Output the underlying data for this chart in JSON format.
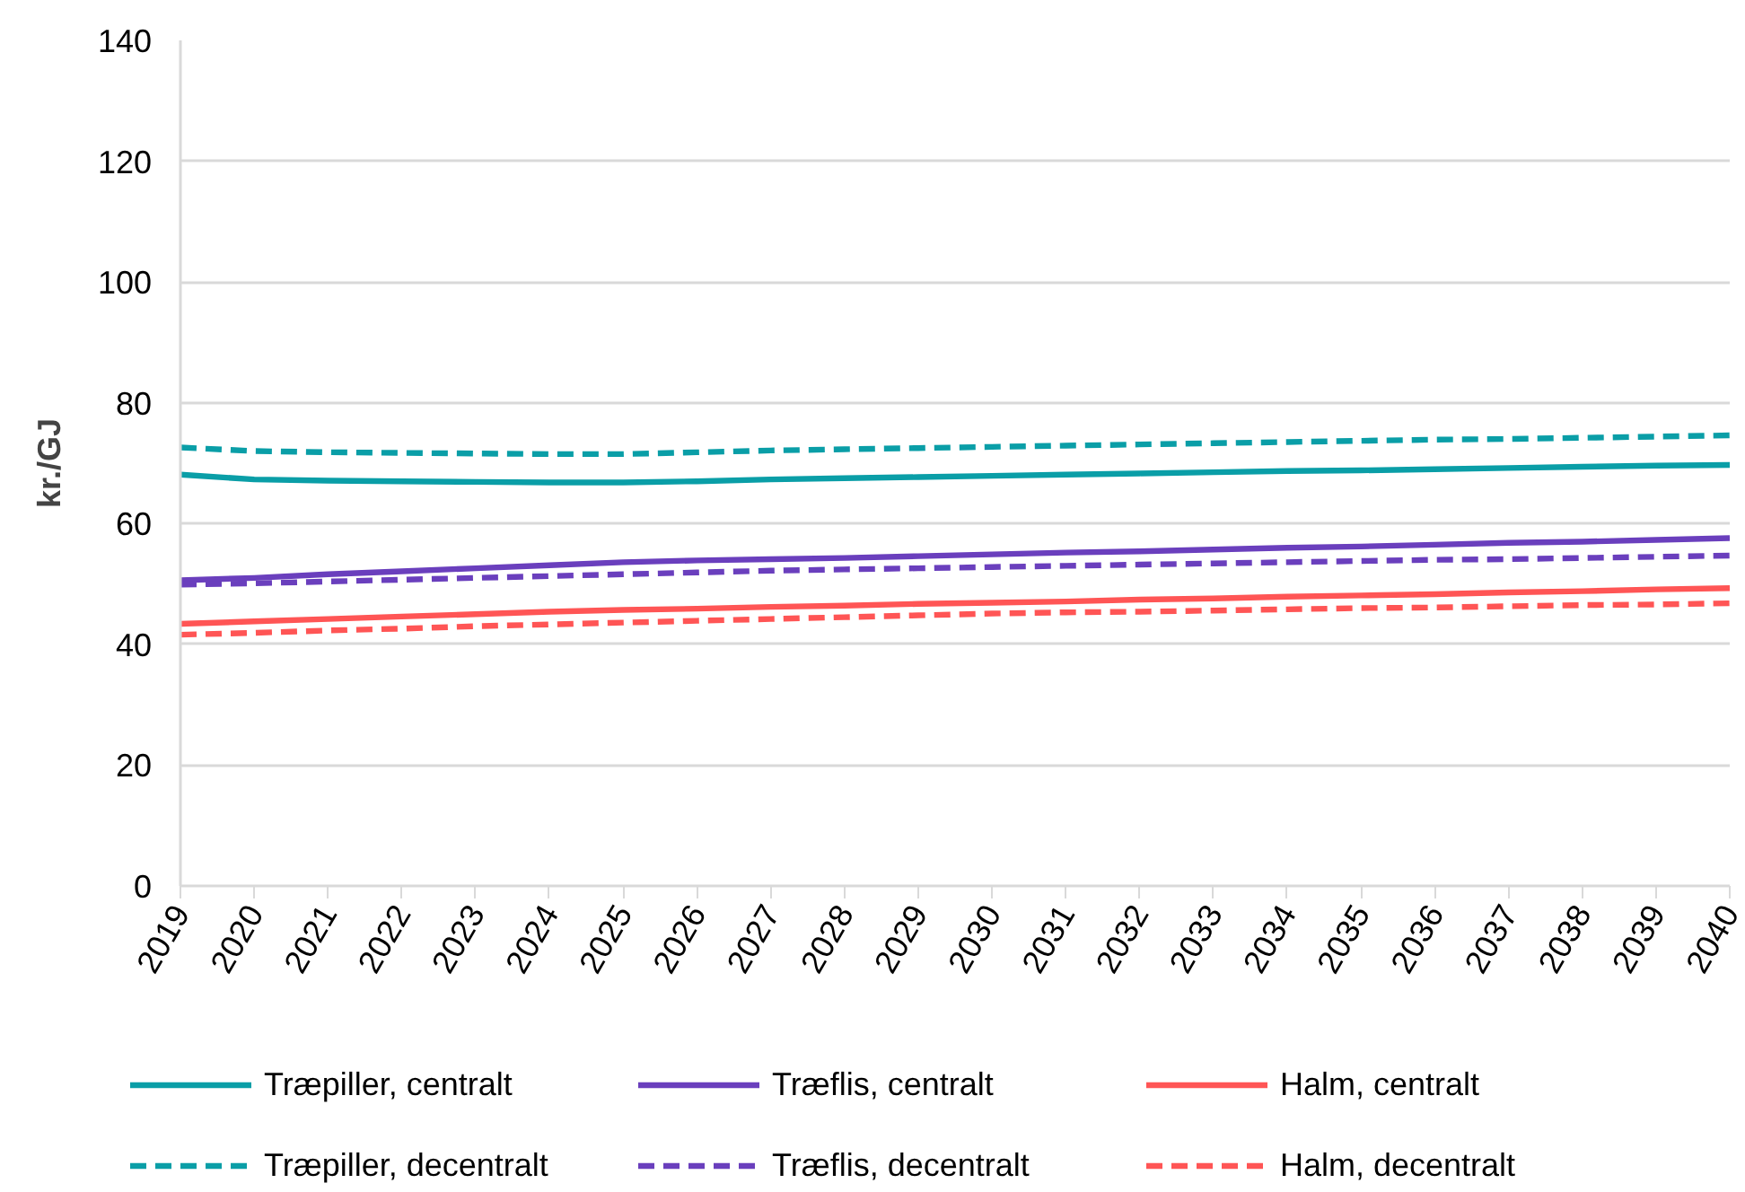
{
  "chart_data": {
    "type": "line",
    "ylabel": "kr./GJ",
    "categories": [
      "2019",
      "2020",
      "2021",
      "2022",
      "2023",
      "2024",
      "2025",
      "2026",
      "2027",
      "2028",
      "2029",
      "2030",
      "2031",
      "2032",
      "2033",
      "2034",
      "2035",
      "2036",
      "2037",
      "2038",
      "2039",
      "2040"
    ],
    "ylim": [
      0,
      140
    ],
    "yticks": [
      0,
      20,
      40,
      60,
      80,
      100,
      120,
      140
    ],
    "grid": "y",
    "legend": "bottom",
    "series": [
      {
        "name": "Træpiller, centralt",
        "color": "#0a9ea7",
        "line_style": "solid",
        "values": [
          68.1,
          67.3,
          67.1,
          67.0,
          66.9,
          66.8,
          66.8,
          67.0,
          67.3,
          67.5,
          67.7,
          67.9,
          68.1,
          68.3,
          68.5,
          68.7,
          68.8,
          69.0,
          69.2,
          69.4,
          69.6,
          69.7
        ]
      },
      {
        "name": "Træflis, centralt",
        "color": "#6a3fbd",
        "line_style": "solid",
        "values": [
          50.6,
          51.0,
          51.6,
          52.1,
          52.6,
          53.1,
          53.6,
          53.9,
          54.1,
          54.3,
          54.6,
          54.9,
          55.2,
          55.4,
          55.7,
          56.0,
          56.2,
          56.5,
          56.8,
          57.0,
          57.3,
          57.6
        ]
      },
      {
        "name": "Halm, centralt",
        "color": "#ff5555",
        "line_style": "solid",
        "values": [
          43.4,
          43.8,
          44.2,
          44.6,
          45.0,
          45.4,
          45.7,
          45.9,
          46.2,
          46.4,
          46.7,
          46.9,
          47.1,
          47.4,
          47.6,
          47.9,
          48.1,
          48.3,
          48.6,
          48.8,
          49.1,
          49.3
        ]
      },
      {
        "name": "Træpiller, decentralt",
        "color": "#0a9ea7",
        "line_style": "dashed",
        "values": [
          72.6,
          72.0,
          71.8,
          71.7,
          71.6,
          71.5,
          71.5,
          71.8,
          72.1,
          72.3,
          72.5,
          72.7,
          72.9,
          73.1,
          73.3,
          73.5,
          73.7,
          73.9,
          74.0,
          74.2,
          74.4,
          74.6
        ]
      },
      {
        "name": "Træflis, decentralt",
        "color": "#6a3fbd",
        "line_style": "dashed",
        "values": [
          49.9,
          50.1,
          50.4,
          50.7,
          51.0,
          51.3,
          51.6,
          51.9,
          52.2,
          52.4,
          52.6,
          52.8,
          53.0,
          53.2,
          53.4,
          53.6,
          53.8,
          54.0,
          54.1,
          54.3,
          54.5,
          54.7
        ]
      },
      {
        "name": "Halm, decentralt",
        "color": "#ff5555",
        "line_style": "dashed",
        "values": [
          41.6,
          41.9,
          42.3,
          42.6,
          43.0,
          43.3,
          43.6,
          43.9,
          44.2,
          44.5,
          44.8,
          45.1,
          45.3,
          45.4,
          45.6,
          45.8,
          46.0,
          46.1,
          46.3,
          46.5,
          46.6,
          46.8
        ]
      }
    ]
  }
}
